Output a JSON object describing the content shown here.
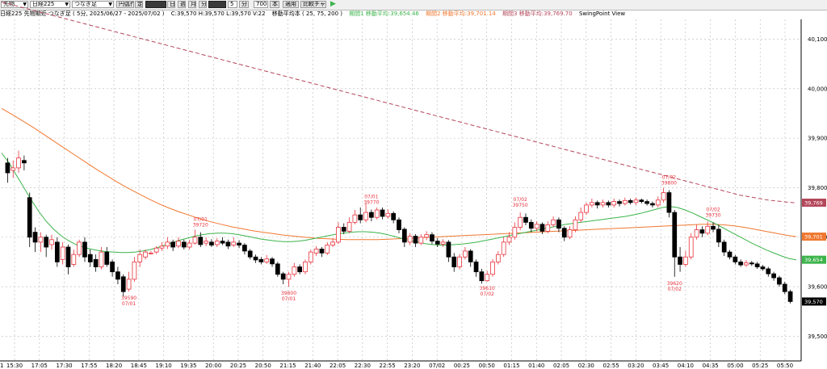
{
  "toolbar": {
    "market_select": "先物",
    "index_select": "日経225",
    "mode_select": "つなぎ足",
    "buttons": [
      "円弧作図",
      "定",
      "日",
      "週",
      "月",
      "分",
      "5",
      "秒"
    ],
    "interval_value": "5",
    "interval_unit": "分",
    "count_value": "700",
    "count_unit": "本",
    "apply_label": "適用",
    "compare_label": "比較チャート"
  },
  "status": {
    "instrument": "日経225 先物期近 つなぎ足 ( 5分, 2025/06/27 - 2025/07/02 )",
    "ohlc": "C:39,570 H:39,570 L:39,570 V:22",
    "ma_title": "移動平均本 ( 25, 75, 200 )",
    "ma_short": "期間1 移動平均:39,654.46",
    "ma_mid": "期間2 移動平均:39,701.14",
    "ma_long": "期間3 移動平均:39,769.70",
    "view_name": "SwingPoint View"
  },
  "colors": {
    "up": "#e8323c",
    "down": "#000000",
    "ma_short": "#3cb44b",
    "ma_mid": "#f07830",
    "ma_long": "#b4465a",
    "grid": "#b8b8b8"
  },
  "chart_data": {
    "type": "candlestick",
    "ylim": [
      39450,
      40140
    ],
    "y_ticks": [
      39500,
      39600,
      39700,
      39800,
      39900,
      40000,
      40100
    ],
    "y_tick_labels": [
      "39,500",
      "39,600",
      "39,700",
      "39,800",
      "39,900",
      "40,000",
      "40,100"
    ],
    "x_tick_labels": [
      "15:30",
      "17:05",
      "17:30",
      "17:55",
      "18:20",
      "18:45",
      "19:10",
      "19:35",
      "20:00",
      "20:25",
      "20:50",
      "21:15",
      "21:40",
      "22:05",
      "22:30",
      "22:55",
      "23:20",
      "07/02",
      "00:25",
      "00:50",
      "01:15",
      "01:40",
      "02:05",
      "02:30",
      "02:55",
      "03:20",
      "03:45",
      "04:10",
      "04:35",
      "05:00",
      "05:25",
      "05:50"
    ],
    "x_first_label": "1",
    "price_markers": [
      {
        "label": "39,769",
        "value": 39769.7,
        "color": "#b4465a"
      },
      {
        "label": "39,701",
        "value": 39701.14,
        "color": "#f07830"
      },
      {
        "label": "39,654",
        "value": 39654.46,
        "color": "#3cb44b"
      },
      {
        "label": "39,570",
        "value": 39570,
        "color": "#000000"
      }
    ],
    "swing_labels": [
      {
        "date": "07/01",
        "price": "39590",
        "position": "below",
        "bar": 22
      },
      {
        "date": "07/01",
        "price": "39720",
        "position": "above",
        "bar": 35
      },
      {
        "date": "07/01",
        "price": "39600",
        "position": "below",
        "bar": 51
      },
      {
        "date": "07/01",
        "price": "39770",
        "position": "above",
        "bar": 66
      },
      {
        "date": "07/02",
        "price": "39750",
        "position": "above",
        "bar": 93
      },
      {
        "date": "07/02",
        "price": "39610",
        "position": "below",
        "bar": 87
      },
      {
        "date": "07/02",
        "price": "39800",
        "position": "above",
        "bar": 120
      },
      {
        "date": "07/02",
        "price": "39620",
        "position": "below",
        "bar": 121
      },
      {
        "date": "07/02",
        "price": "39730",
        "position": "above",
        "bar": 128
      }
    ],
    "candles": [
      [
        39850,
        39830,
        39860,
        39810
      ],
      [
        39835,
        39840,
        39855,
        39820
      ],
      [
        39840,
        39860,
        39875,
        39830
      ],
      [
        39855,
        39850,
        39865,
        39835
      ],
      [
        39780,
        39700,
        39790,
        39680
      ],
      [
        39710,
        39690,
        39720,
        39670
      ],
      [
        39690,
        39700,
        39710,
        39670
      ],
      [
        39700,
        39680,
        39705,
        39660
      ],
      [
        39685,
        39695,
        39705,
        39675
      ],
      [
        39690,
        39650,
        39700,
        39640
      ],
      [
        39655,
        39680,
        39690,
        39645
      ],
      [
        39680,
        39640,
        39685,
        39625
      ],
      [
        39645,
        39665,
        39675,
        39640
      ],
      [
        39665,
        39690,
        39695,
        39660
      ],
      [
        39690,
        39660,
        39700,
        39650
      ],
      [
        39665,
        39650,
        39675,
        39640
      ],
      [
        39655,
        39640,
        39665,
        39630
      ],
      [
        39640,
        39670,
        39680,
        39635
      ],
      [
        39670,
        39645,
        39680,
        39640
      ],
      [
        39650,
        39630,
        39655,
        39620
      ],
      [
        39630,
        39615,
        39640,
        39605
      ],
      [
        39620,
        39590,
        39625,
        39580
      ],
      [
        39595,
        39615,
        39630,
        39590
      ],
      [
        39615,
        39650,
        39660,
        39610
      ],
      [
        39650,
        39665,
        39675,
        39640
      ],
      [
        39660,
        39670,
        39675,
        39655
      ],
      [
        39668,
        39668,
        39672,
        39665
      ],
      [
        39670,
        39678,
        39682,
        39666
      ],
      [
        39678,
        39682,
        39690,
        39672
      ],
      [
        39682,
        39690,
        39700,
        39676
      ],
      [
        39690,
        39680,
        39695,
        39672
      ],
      [
        39682,
        39692,
        39700,
        39678
      ],
      [
        39690,
        39680,
        39695,
        39675
      ],
      [
        39680,
        39688,
        39695,
        39675
      ],
      [
        39688,
        39700,
        39715,
        39685
      ],
      [
        39700,
        39685,
        39710,
        39680
      ],
      [
        39688,
        39692,
        39700,
        39682
      ],
      [
        39690,
        39684,
        39696,
        39680
      ],
      [
        39685,
        39692,
        39698,
        39680
      ],
      [
        39692,
        39688,
        39700,
        39684
      ],
      [
        39690,
        39682,
        39695,
        39676
      ],
      [
        39684,
        39690,
        39700,
        39680
      ],
      [
        39688,
        39684,
        39694,
        39678
      ],
      [
        39684,
        39672,
        39688,
        39665
      ],
      [
        39672,
        39660,
        39676,
        39655
      ],
      [
        39660,
        39654,
        39665,
        39648
      ],
      [
        39655,
        39650,
        39660,
        39645
      ],
      [
        39650,
        39656,
        39664,
        39646
      ],
      [
        39656,
        39646,
        39660,
        39640
      ],
      [
        39646,
        39625,
        39650,
        39620
      ],
      [
        39626,
        39615,
        39630,
        39605
      ],
      [
        39615,
        39625,
        39630,
        39600
      ],
      [
        39625,
        39640,
        39648,
        39620
      ],
      [
        39640,
        39630,
        39645,
        39625
      ],
      [
        39630,
        39650,
        39655,
        39625
      ],
      [
        39650,
        39670,
        39675,
        39645
      ],
      [
        39668,
        39676,
        39682,
        39662
      ],
      [
        39676,
        39668,
        39680,
        39660
      ],
      [
        39668,
        39684,
        39690,
        39664
      ],
      [
        39684,
        39690,
        39698,
        39680
      ],
      [
        39690,
        39720,
        39730,
        39686
      ],
      [
        39720,
        39712,
        39728,
        39706
      ],
      [
        39712,
        39730,
        39740,
        39708
      ],
      [
        39730,
        39745,
        39755,
        39726
      ],
      [
        39745,
        39735,
        39760,
        39728
      ],
      [
        39735,
        39750,
        39770,
        39730
      ],
      [
        39750,
        39740,
        39756,
        39732
      ],
      [
        39740,
        39755,
        39760,
        39736
      ],
      [
        39755,
        39742,
        39760,
        39736
      ],
      [
        39742,
        39748,
        39756,
        39738
      ],
      [
        39748,
        39735,
        39752,
        39728
      ],
      [
        39735,
        39715,
        39740,
        39708
      ],
      [
        39716,
        39690,
        39720,
        39680
      ],
      [
        39690,
        39702,
        39708,
        39684
      ],
      [
        39702,
        39688,
        39706,
        39680
      ],
      [
        39688,
        39700,
        39706,
        39684
      ],
      [
        39700,
        39705,
        39712,
        39694
      ],
      [
        39705,
        39692,
        39710,
        39686
      ],
      [
        39692,
        39686,
        39698,
        39680
      ],
      [
        39686,
        39690,
        39696,
        39680
      ],
      [
        39690,
        39660,
        39694,
        39650
      ],
      [
        39660,
        39640,
        39668,
        39630
      ],
      [
        39640,
        39660,
        39666,
        39635
      ],
      [
        39660,
        39672,
        39680,
        39655
      ],
      [
        39672,
        39650,
        39676,
        39640
      ],
      [
        39650,
        39630,
        39655,
        39620
      ],
      [
        39630,
        39612,
        39636,
        39606
      ],
      [
        39612,
        39625,
        39632,
        39610
      ],
      [
        39625,
        39650,
        39656,
        39620
      ],
      [
        39650,
        39665,
        39672,
        39645
      ],
      [
        39665,
        39690,
        39700,
        39660
      ],
      [
        39690,
        39700,
        39710,
        39684
      ],
      [
        39700,
        39720,
        39730,
        39695
      ],
      [
        39720,
        39740,
        39750,
        39714
      ],
      [
        39740,
        39730,
        39748,
        39724
      ],
      [
        39730,
        39718,
        39736,
        39710
      ],
      [
        39718,
        39726,
        39732,
        39712
      ],
      [
        39726,
        39712,
        39730,
        39706
      ],
      [
        39712,
        39725,
        39732,
        39708
      ],
      [
        39725,
        39735,
        39742,
        39720
      ],
      [
        39735,
        39718,
        39740,
        39710
      ],
      [
        39718,
        39700,
        39722,
        39692
      ],
      [
        39700,
        39715,
        39722,
        39696
      ],
      [
        39715,
        39735,
        39742,
        39710
      ],
      [
        39735,
        39750,
        39760,
        39730
      ],
      [
        39750,
        39765,
        39770,
        39745
      ],
      [
        39765,
        39770,
        39778,
        39760
      ],
      [
        39770,
        39765,
        39774,
        39758
      ],
      [
        39765,
        39770,
        39776,
        39760
      ],
      [
        39770,
        39765,
        39774,
        39760
      ],
      [
        39765,
        39772,
        39778,
        39760
      ],
      [
        39772,
        39768,
        39776,
        39762
      ],
      [
        39768,
        39774,
        39780,
        39764
      ],
      [
        39774,
        39770,
        39778,
        39766
      ],
      [
        39770,
        39775,
        39780,
        39765
      ],
      [
        39775,
        39772,
        39778,
        39768
      ],
      [
        39772,
        39768,
        39776,
        39764
      ],
      [
        39768,
        39765,
        39772,
        39760
      ],
      [
        39765,
        39775,
        39782,
        39760
      ],
      [
        39775,
        39790,
        39800,
        39770
      ],
      [
        39790,
        39750,
        39795,
        39740
      ],
      [
        39750,
        39660,
        39755,
        39620
      ],
      [
        39660,
        39645,
        39680,
        39630
      ],
      [
        39645,
        39660,
        39672,
        39640
      ],
      [
        39660,
        39700,
        39708,
        39655
      ],
      [
        39700,
        39715,
        39725,
        39695
      ],
      [
        39715,
        39708,
        39722,
        39700
      ],
      [
        39708,
        39722,
        39732,
        39704
      ],
      [
        39722,
        39716,
        39730,
        39710
      ],
      [
        39716,
        39690,
        39725,
        39680
      ],
      [
        39690,
        39670,
        39695,
        39662
      ],
      [
        39670,
        39660,
        39674,
        39655
      ],
      [
        39660,
        39650,
        39664,
        39645
      ],
      [
        39650,
        39644,
        39655,
        39640
      ],
      [
        39644,
        39648,
        39654,
        39640
      ],
      [
        39648,
        39646,
        39652,
        39642
      ],
      [
        39646,
        39640,
        39650,
        39636
      ],
      [
        39640,
        39636,
        39644,
        39632
      ],
      [
        39636,
        39626,
        39640,
        39620
      ],
      [
        39626,
        39618,
        39630,
        39612
      ],
      [
        39618,
        39605,
        39622,
        39600
      ],
      [
        39605,
        39590,
        39610,
        39585
      ],
      [
        39590,
        39570,
        39594,
        39566
      ]
    ],
    "moving_averages": {
      "short_25": [
        39870,
        39850,
        39825,
        39800,
        39775,
        39752,
        39732,
        39716,
        39703,
        39693,
        39685,
        39680,
        39676,
        39673,
        39671,
        39670,
        39669,
        39669,
        39670,
        39672,
        39675,
        39679,
        39684,
        39689,
        39694,
        39698,
        39702,
        39705,
        39707,
        39708,
        39708,
        39707,
        39705,
        39702,
        39699,
        39696,
        39694,
        39692,
        39691,
        39691,
        39692,
        39694,
        39697,
        39700,
        39703,
        39706,
        39708,
        39710,
        39711,
        39711,
        39710,
        39708,
        39705,
        39701,
        39697,
        39693,
        39690,
        39687,
        39685,
        39684,
        39684,
        39685,
        39686,
        39688,
        39690,
        39693,
        39696,
        39699,
        39702,
        39705,
        39708,
        39711,
        39714,
        39717,
        39720,
        39723,
        39726,
        39728,
        39730,
        39732,
        39734,
        39736,
        39738,
        39740,
        39742,
        39745,
        39748,
        39752,
        39756,
        39760,
        39762,
        39760,
        39755,
        39749,
        39742,
        39735,
        39728,
        39720,
        39712,
        39704,
        39696,
        39688,
        39681,
        39674,
        39668,
        39662,
        39657,
        39654
      ],
      "mid_75": [
        39960,
        39948,
        39935,
        39922,
        39908,
        39894,
        39880,
        39866,
        39852,
        39838,
        39825,
        39812,
        39800,
        39789,
        39778,
        39768,
        39759,
        39751,
        39744,
        39737,
        39731,
        39726,
        39721,
        39717,
        39713,
        39710,
        39707,
        39704,
        39702,
        39700,
        39698,
        39697,
        39696,
        39695,
        39695,
        39695,
        39695,
        39696,
        39697,
        39698,
        39699,
        39700,
        39701,
        39702,
        39703,
        39704,
        39705,
        39706,
        39707,
        39708,
        39709,
        39710,
        39711,
        39712,
        39713,
        39714,
        39715,
        39716,
        39717,
        39718,
        39719,
        39720,
        39721,
        39722,
        39723,
        39724,
        39725,
        39726,
        39726,
        39725,
        39723,
        39720,
        39716,
        39712,
        39708,
        39704,
        39701
      ],
      "long_200": [
        40175,
        40160,
        40145,
        40130,
        40115,
        40100,
        40085,
        40070,
        40055,
        40040,
        40025,
        40010,
        39995,
        39980,
        39965,
        39950,
        39935,
        39920,
        39905,
        39890,
        39875,
        39860,
        39845,
        39830,
        39815,
        39800,
        39785,
        39775,
        39769
      ]
    }
  }
}
